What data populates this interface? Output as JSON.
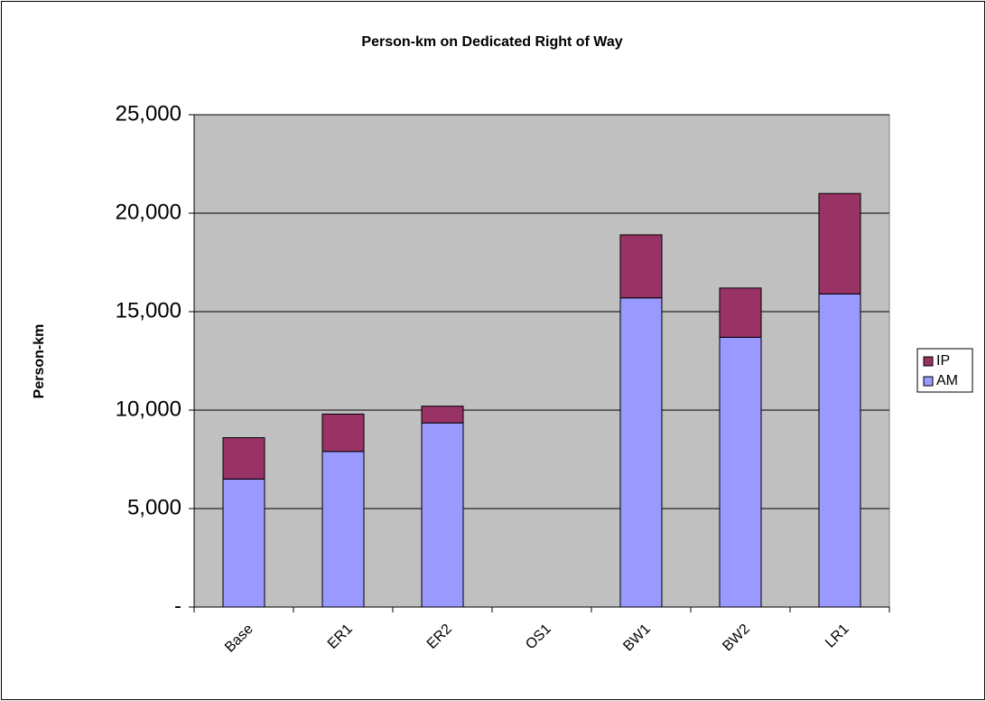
{
  "chart_data": {
    "type": "stacked_bar",
    "title": "Person-km on Dedicated Right of Way",
    "y_label": "Person-km",
    "categories": [
      "Base",
      "ER1",
      "ER2",
      "OS1",
      "BW1",
      "BW2",
      "LR1"
    ],
    "series": [
      {
        "name": "AM",
        "color": "#9999ff",
        "values": [
          6500,
          7900,
          9350,
          null,
          15700,
          13700,
          15900
        ]
      },
      {
        "name": "IP",
        "color": "#993366",
        "values": [
          2100,
          1900,
          850,
          null,
          3200,
          2500,
          5100
        ]
      }
    ],
    "ylim": [
      0,
      25000
    ],
    "yticks": [
      {
        "value": 0,
        "label": "-"
      },
      {
        "value": 5000,
        "label": "5,000"
      },
      {
        "value": 10000,
        "label": "10,000"
      },
      {
        "value": 15000,
        "label": "15,000"
      },
      {
        "value": 20000,
        "label": "20,000"
      },
      {
        "value": 25000,
        "label": "25,000"
      }
    ],
    "grid": true,
    "legend": "right",
    "plot_background": "#c0c0c0"
  }
}
